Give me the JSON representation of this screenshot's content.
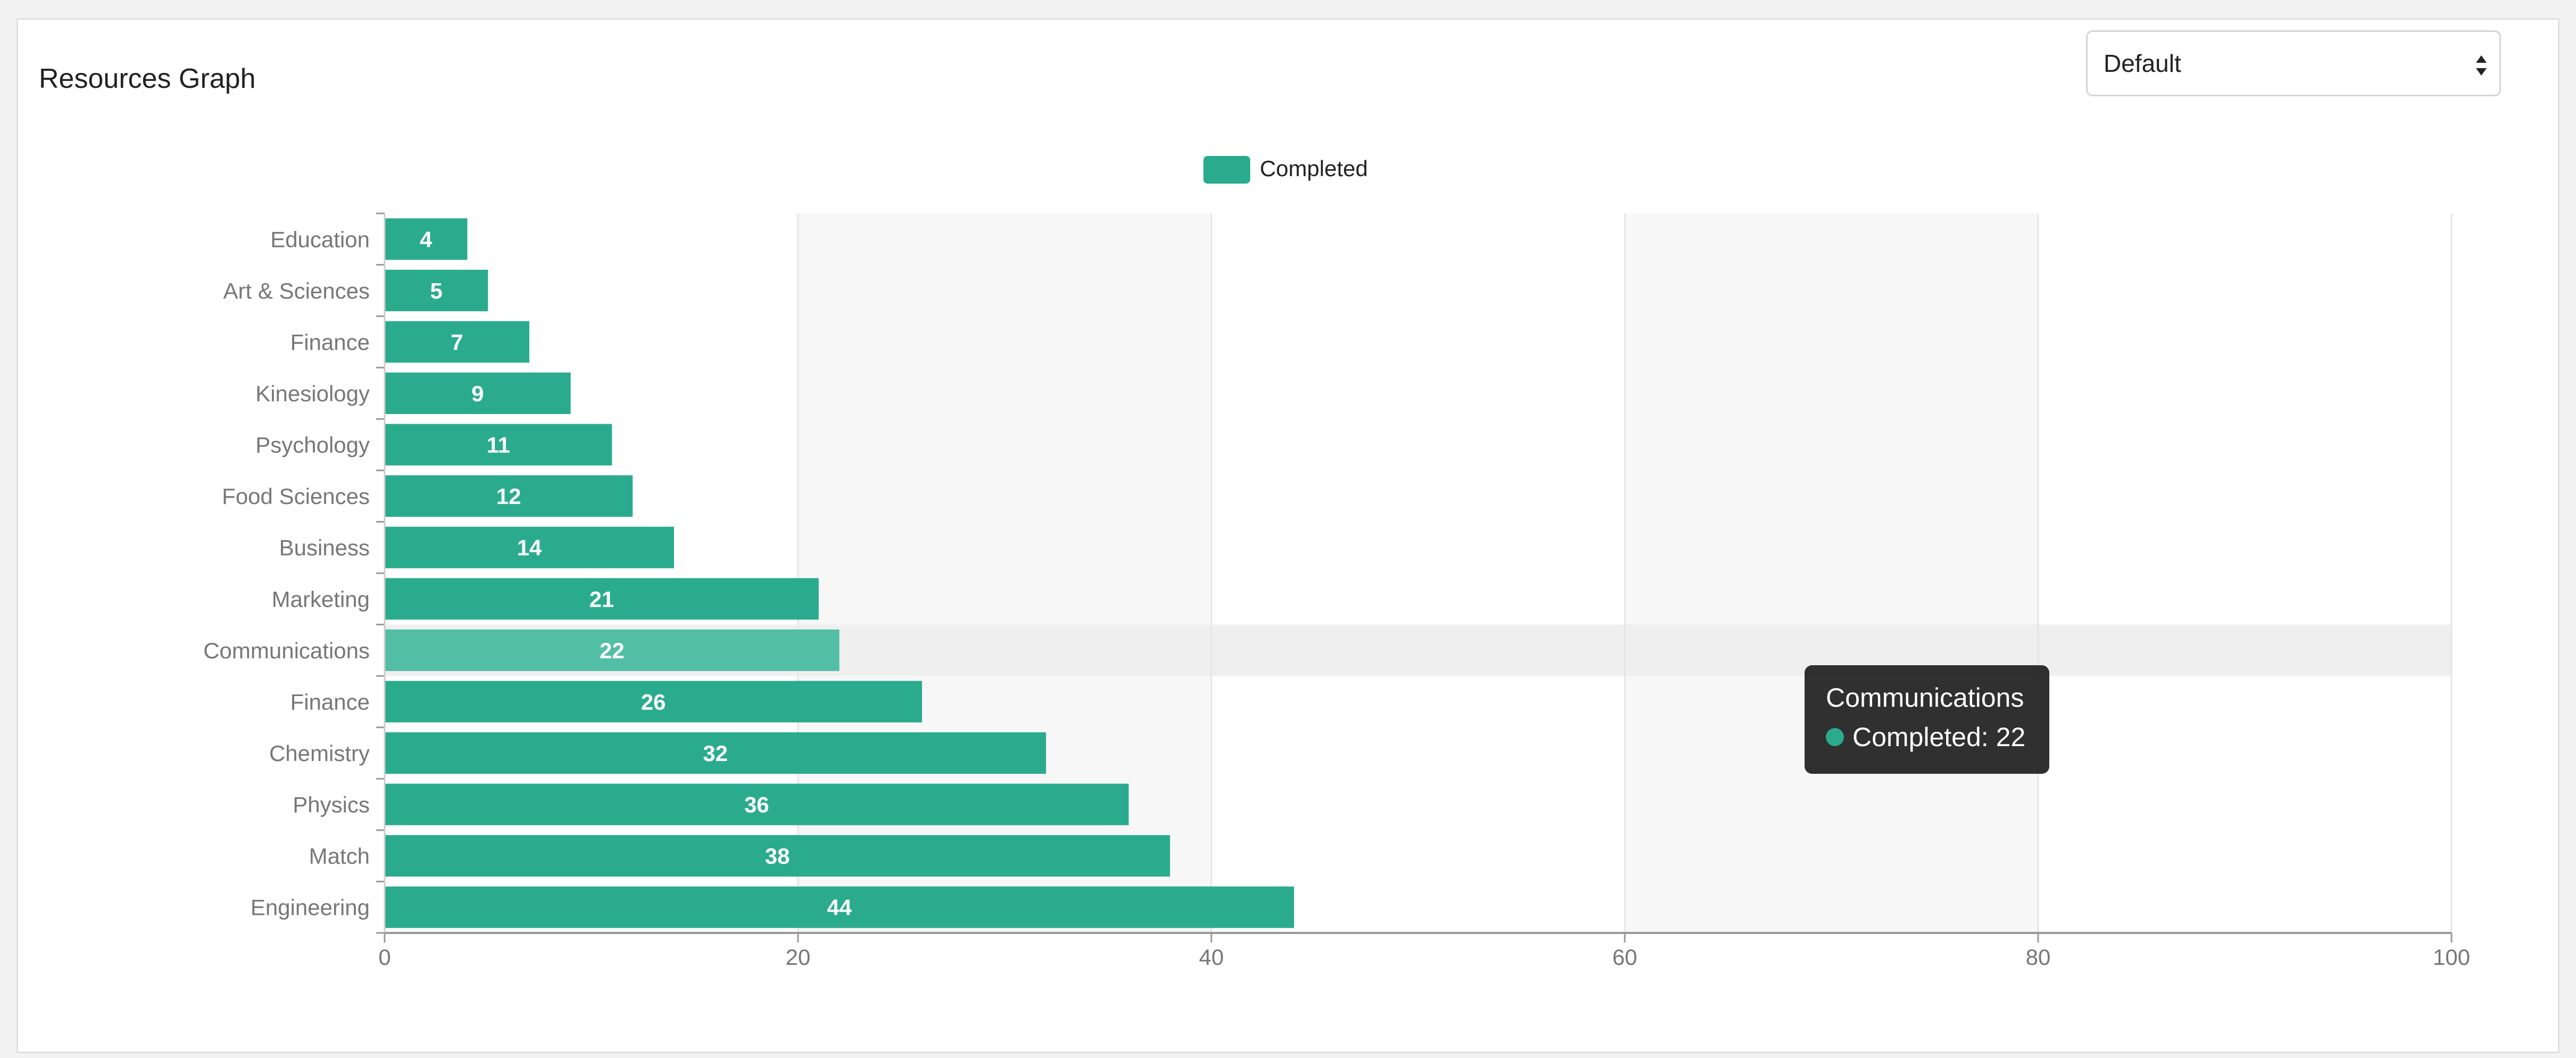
{
  "card": {
    "title": "Resources Graph"
  },
  "filter": {
    "selected": "Default"
  },
  "colors": {
    "bar": "#2bab8e",
    "bar_hover": "#52bea5",
    "hover_band": "#efefef",
    "plot_band": "#f7f7f7",
    "grid": "#e6e6e6",
    "axis": "#999999",
    "label": "#777777"
  },
  "tooltip": {
    "title": "Communications",
    "line": "Completed: 22"
  },
  "chart_data": {
    "type": "bar",
    "orientation": "horizontal",
    "title": "",
    "xlabel": "",
    "ylabel": "",
    "xlim": [
      0,
      100
    ],
    "x_ticks": [
      0,
      20,
      40,
      60,
      80,
      100
    ],
    "grid": true,
    "legend": {
      "position": "top-center",
      "entries": [
        "Completed"
      ]
    },
    "categories": [
      "Education",
      "Art & Sciences",
      "Finance",
      "Kinesiology",
      "Psychology",
      "Food Sciences",
      "Business",
      "Marketing",
      "Communications",
      "Finance",
      "Chemistry",
      "Physics",
      "Match",
      "Engineering"
    ],
    "series": [
      {
        "name": "Completed",
        "values": [
          4,
          5,
          7,
          9,
          11,
          12,
          14,
          21,
          22,
          26,
          32,
          36,
          38,
          44
        ]
      }
    ],
    "highlighted_category_index": 8
  }
}
